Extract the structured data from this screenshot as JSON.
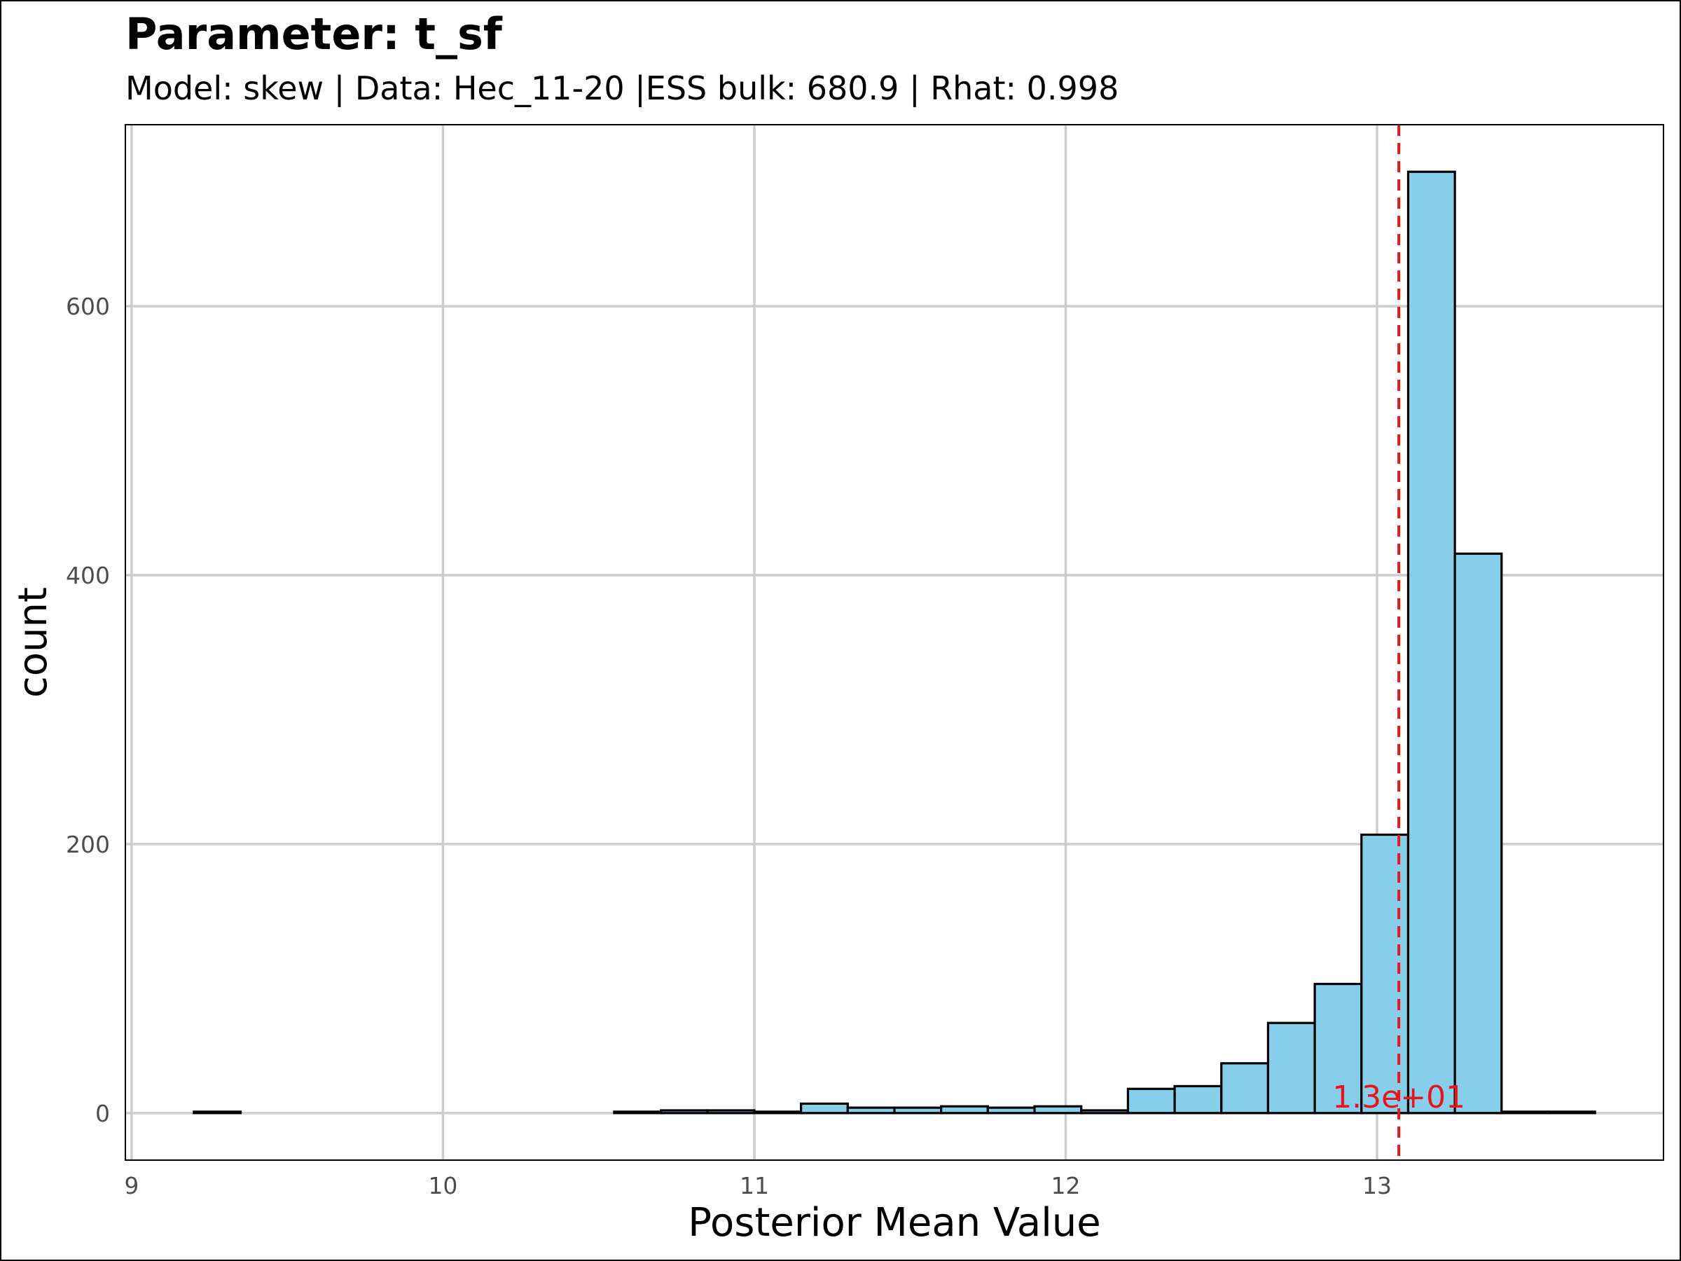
{
  "chart_data": {
    "type": "bar",
    "title": "Parameter: t_sf",
    "subtitle": "Model: skew | Data: Hec_11-20 |ESS bulk: 680.9 | Rhat: 0.998",
    "xlabel": "Posterior Mean Value",
    "ylabel": "count",
    "xlim": [
      8.98,
      13.92
    ],
    "ylim": [
      -35,
      735
    ],
    "x_ticks": [
      9,
      10,
      11,
      12,
      13
    ],
    "y_ticks": [
      0,
      200,
      400,
      600
    ],
    "x_tick_labels": [
      "9",
      "10",
      "11",
      "12",
      "13"
    ],
    "y_tick_labels": [
      "0",
      "200",
      "400",
      "600"
    ],
    "grid": true,
    "bin_width": 0.15,
    "bins": [
      {
        "left": 9.2,
        "count": 1
      },
      {
        "left": 9.35,
        "count": 0
      },
      {
        "left": 9.5,
        "count": 0
      },
      {
        "left": 9.65,
        "count": 0
      },
      {
        "left": 9.8,
        "count": 0
      },
      {
        "left": 9.95,
        "count": 0
      },
      {
        "left": 10.1,
        "count": 0
      },
      {
        "left": 10.25,
        "count": 0
      },
      {
        "left": 10.4,
        "count": 0
      },
      {
        "left": 10.55,
        "count": 1
      },
      {
        "left": 10.7,
        "count": 2
      },
      {
        "left": 10.85,
        "count": 2
      },
      {
        "left": 11.0,
        "count": 1
      },
      {
        "left": 11.15,
        "count": 7
      },
      {
        "left": 11.3,
        "count": 4
      },
      {
        "left": 11.45,
        "count": 4
      },
      {
        "left": 11.6,
        "count": 5
      },
      {
        "left": 11.75,
        "count": 4
      },
      {
        "left": 11.9,
        "count": 5
      },
      {
        "left": 12.05,
        "count": 2
      },
      {
        "left": 12.2,
        "count": 18
      },
      {
        "left": 12.35,
        "count": 20
      },
      {
        "left": 12.5,
        "count": 37
      },
      {
        "left": 12.65,
        "count": 67
      },
      {
        "left": 12.8,
        "count": 96
      },
      {
        "left": 12.95,
        "count": 207
      },
      {
        "left": 13.1,
        "count": 700
      },
      {
        "left": 13.25,
        "count": 416
      },
      {
        "left": 13.4,
        "count": 1
      },
      {
        "left": 13.55,
        "count": 1
      }
    ],
    "reference_line": {
      "x": 13.07,
      "label": "1.3e+01",
      "color": "#e8151a"
    },
    "bar_color": "#87ceeb",
    "grid_color": "#cccccc"
  }
}
